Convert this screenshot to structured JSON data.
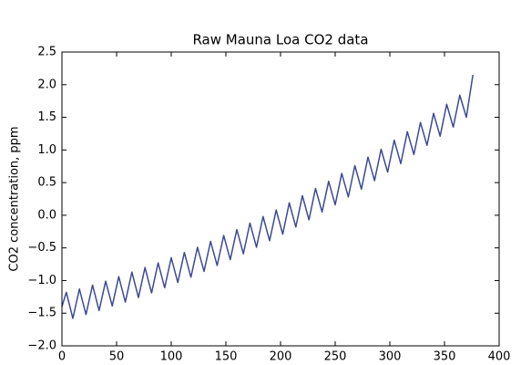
{
  "chart_data": {
    "type": "line",
    "title": "Raw Mauna Loa CO2 data",
    "y_label": "CO2 concentration, ppm",
    "x": [
      0,
      4,
      10,
      16,
      22,
      28,
      34,
      40,
      46,
      52,
      58,
      64,
      70,
      76,
      82,
      88,
      94,
      100,
      106,
      112,
      118,
      124,
      130,
      136,
      142,
      148,
      154,
      160,
      166,
      172,
      178,
      184,
      190,
      196,
      202,
      208,
      214,
      220,
      226,
      232,
      238,
      244,
      250,
      256,
      262,
      268,
      274,
      280,
      286,
      292,
      298,
      304,
      310,
      316,
      322,
      328,
      334,
      340,
      346,
      352,
      358,
      364,
      370,
      376
    ],
    "series": [
      {
        "color": "#3b4a94",
        "values": [
          -1.4,
          -1.18,
          -1.58,
          -1.13,
          -1.52,
          -1.07,
          -1.46,
          -1.01,
          -1.39,
          -0.94,
          -1.33,
          -0.87,
          -1.26,
          -0.8,
          -1.19,
          -0.73,
          -1.11,
          -0.65,
          -1.03,
          -0.57,
          -0.95,
          -0.49,
          -0.86,
          -0.4,
          -0.77,
          -0.31,
          -0.68,
          -0.22,
          -0.59,
          -0.12,
          -0.49,
          -0.02,
          -0.39,
          0.08,
          -0.29,
          0.19,
          -0.18,
          0.3,
          -0.07,
          0.41,
          0.05,
          0.52,
          0.16,
          0.64,
          0.28,
          0.76,
          0.4,
          0.89,
          0.53,
          1.01,
          0.66,
          1.15,
          0.79,
          1.28,
          0.93,
          1.42,
          1.07,
          1.56,
          1.21,
          1.7,
          1.35,
          1.84,
          1.5,
          2.15
        ]
      }
    ],
    "xlim": [
      0,
      400
    ],
    "xticks": [
      0,
      50,
      100,
      150,
      200,
      250,
      300,
      350,
      400
    ],
    "ylim": [
      -2.0,
      2.5
    ],
    "yticks": [
      {
        "value": -2.0,
        "label": "−2.0"
      },
      {
        "value": -1.5,
        "label": "−1.5"
      },
      {
        "value": -1.0,
        "label": "−1.0"
      },
      {
        "value": -0.5,
        "label": "−0.5"
      },
      {
        "value": 0.0,
        "label": "0.0"
      },
      0.5,
      {
        "value": 1.0,
        "label": "1.0"
      },
      1.5,
      {
        "value": 2.0,
        "label": "2.0"
      },
      2.5
    ]
  }
}
